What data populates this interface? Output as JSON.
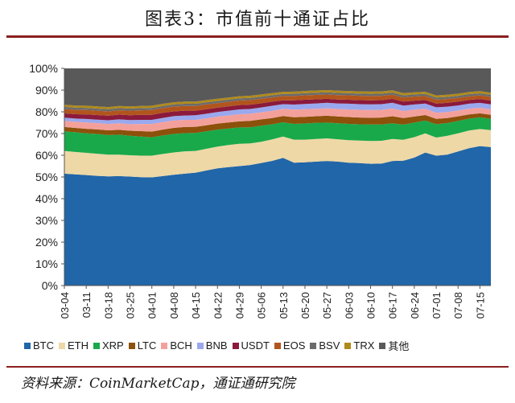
{
  "title": "图表3：市值前十通证占比",
  "source": "资料来源：CoinMarketCap，通证通研究院",
  "chart_data": {
    "type": "area",
    "stacked": true,
    "ylim": [
      0,
      100
    ],
    "y_ticks": [
      "0%",
      "10%",
      "20%",
      "30%",
      "40%",
      "50%",
      "60%",
      "70%",
      "80%",
      "90%",
      "100%"
    ],
    "x_ticks": [
      "03-04",
      "03-11",
      "03-18",
      "03-25",
      "04-01",
      "04-08",
      "04-15",
      "04-22",
      "04-29",
      "05-06",
      "05-13",
      "05-20",
      "05-27",
      "06-03",
      "06-10",
      "06-17",
      "06-24",
      "07-01",
      "07-08",
      "07-15"
    ],
    "x": [
      "03-04",
      "03-07",
      "03-11",
      "03-14",
      "03-18",
      "03-21",
      "03-25",
      "03-28",
      "04-01",
      "04-04",
      "04-08",
      "04-11",
      "04-15",
      "04-18",
      "04-22",
      "04-25",
      "04-29",
      "05-02",
      "05-06",
      "05-09",
      "05-13",
      "05-16",
      "05-20",
      "05-23",
      "05-27",
      "05-30",
      "06-03",
      "06-06",
      "06-10",
      "06-13",
      "06-17",
      "06-20",
      "06-24",
      "06-27",
      "07-01",
      "07-04",
      "07-08",
      "07-11",
      "07-15",
      "07-18"
    ],
    "series": [
      {
        "name": "BTC",
        "color": "#2166a8",
        "values": [
          51.5,
          51.2,
          50.9,
          50.5,
          50.3,
          50.4,
          50.2,
          49.9,
          49.8,
          50.4,
          51.0,
          51.5,
          52.0,
          53.0,
          54.0,
          54.5,
          55.0,
          55.5,
          56.5,
          58.0,
          60.0,
          56.0,
          56.2,
          56.5,
          56.8,
          56.5,
          56.0,
          55.8,
          55.5,
          55.6,
          56.8,
          57.5,
          59.5,
          62.5,
          61.0,
          61.5,
          63.0,
          64.5,
          65.5,
          65.0
        ]
      },
      {
        "name": "ETH",
        "color": "#eed8a6",
        "values": [
          10.5,
          10.3,
          10.2,
          10.2,
          10.0,
          9.9,
          9.8,
          9.9,
          10.0,
          10.2,
          10.3,
          10.3,
          10.0,
          10.0,
          10.0,
          10.2,
          10.3,
          10.0,
          9.8,
          10.0,
          10.0,
          10.5,
          10.3,
          10.3,
          10.3,
          10.2,
          10.3,
          10.3,
          10.4,
          10.4,
          10.0,
          9.6,
          9.5,
          9.0,
          8.5,
          8.8,
          8.5,
          8.3,
          8.0,
          8.0
        ]
      },
      {
        "name": "XRP",
        "color": "#19a94a",
        "values": [
          9.0,
          9.1,
          9.0,
          9.1,
          9.0,
          9.2,
          9.0,
          8.8,
          8.5,
          8.5,
          8.5,
          8.4,
          8.3,
          8.0,
          7.8,
          7.6,
          7.5,
          7.4,
          7.4,
          7.0,
          6.7,
          7.2,
          7.4,
          7.4,
          7.2,
          7.3,
          7.4,
          7.4,
          7.5,
          7.4,
          7.2,
          7.0,
          6.8,
          6.0,
          6.3,
          6.0,
          5.8,
          5.6,
          5.5,
          5.3
        ]
      },
      {
        "name": "LTC",
        "color": "#8c510a",
        "values": [
          2.0,
          2.0,
          2.1,
          2.1,
          2.2,
          2.2,
          2.3,
          2.5,
          2.6,
          2.7,
          2.8,
          2.8,
          2.8,
          2.8,
          2.8,
          2.8,
          2.8,
          2.9,
          2.9,
          2.9,
          2.9,
          3.0,
          3.0,
          3.0,
          3.1,
          3.1,
          3.1,
          3.1,
          3.1,
          3.2,
          3.2,
          3.0,
          2.8,
          2.6,
          2.5,
          2.4,
          2.2,
          2.0,
          1.9,
          1.9
        ]
      },
      {
        "name": "BCH",
        "color": "#f4a09a",
        "values": [
          2.8,
          2.8,
          2.9,
          2.9,
          2.9,
          3.0,
          3.0,
          3.3,
          3.5,
          3.5,
          3.4,
          3.3,
          3.2,
          3.2,
          3.2,
          3.2,
          3.3,
          3.3,
          3.3,
          3.4,
          3.4,
          3.5,
          3.5,
          3.4,
          3.4,
          3.4,
          3.5,
          3.5,
          3.5,
          3.5,
          3.5,
          3.3,
          3.2,
          3.0,
          2.9,
          2.8,
          2.7,
          2.7,
          2.6,
          2.6
        ]
      },
      {
        "name": "BNB",
        "color": "#9aa8ee",
        "values": [
          1.5,
          1.5,
          1.6,
          1.6,
          1.7,
          1.8,
          1.9,
          1.9,
          1.9,
          1.9,
          2.0,
          2.0,
          2.1,
          2.1,
          2.1,
          2.2,
          2.2,
          2.2,
          2.2,
          2.3,
          2.2,
          2.3,
          2.4,
          2.4,
          2.5,
          2.5,
          2.6,
          2.6,
          2.6,
          2.6,
          2.6,
          2.5,
          2.4,
          2.4,
          2.5,
          2.5,
          2.4,
          2.3,
          2.3,
          2.3
        ]
      },
      {
        "name": "USDT",
        "color": "#8b1a3c",
        "values": [
          2.0,
          2.0,
          2.1,
          2.1,
          2.1,
          2.2,
          2.2,
          2.3,
          2.3,
          2.3,
          2.2,
          2.2,
          2.1,
          2.1,
          2.0,
          2.0,
          2.0,
          2.0,
          1.9,
          1.9,
          1.8,
          1.9,
          1.9,
          1.9,
          1.8,
          1.8,
          1.8,
          1.8,
          1.8,
          1.8,
          1.8,
          1.8,
          1.8,
          1.7,
          1.8,
          1.8,
          1.8,
          1.8,
          1.8,
          1.8
        ]
      },
      {
        "name": "EOS",
        "color": "#b2551d",
        "values": [
          2.0,
          2.0,
          2.0,
          2.0,
          2.0,
          2.0,
          2.1,
          2.1,
          2.2,
          2.2,
          2.2,
          2.2,
          2.2,
          2.2,
          2.1,
          2.1,
          2.1,
          2.1,
          2.1,
          2.0,
          2.0,
          2.0,
          2.0,
          2.0,
          2.0,
          2.0,
          2.0,
          2.0,
          2.0,
          2.0,
          1.9,
          1.9,
          1.9,
          1.8,
          1.8,
          1.8,
          1.7,
          1.7,
          1.7,
          1.7
        ]
      },
      {
        "name": "BSV",
        "color": "#6b6b6b",
        "values": [
          1.0,
          1.0,
          1.0,
          1.0,
          1.0,
          1.0,
          1.0,
          1.0,
          1.0,
          1.0,
          1.0,
          1.0,
          1.0,
          1.0,
          1.0,
          1.0,
          1.0,
          1.0,
          1.0,
          1.0,
          1.0,
          1.0,
          1.0,
          1.0,
          1.0,
          1.0,
          1.0,
          1.0,
          1.0,
          1.0,
          1.0,
          1.0,
          1.0,
          1.0,
          1.0,
          1.0,
          1.0,
          1.0,
          1.0,
          1.0
        ]
      },
      {
        "name": "TRX",
        "color": "#b08a18",
        "values": [
          1.0,
          1.0,
          1.0,
          1.0,
          1.0,
          1.0,
          1.0,
          1.0,
          1.0,
          1.0,
          1.0,
          1.0,
          1.0,
          1.0,
          1.0,
          1.0,
          1.0,
          1.0,
          1.0,
          1.0,
          1.0,
          1.0,
          1.0,
          1.0,
          1.0,
          1.0,
          1.0,
          1.0,
          1.0,
          1.0,
          1.0,
          1.0,
          1.0,
          1.0,
          1.0,
          1.0,
          1.0,
          1.0,
          1.0,
          1.0
        ]
      },
      {
        "name": "其他",
        "color": "#595959",
        "values": [
          16.7,
          17.1,
          17.2,
          17.5,
          17.8,
          17.3,
          17.5,
          17.3,
          17.2,
          16.3,
          15.6,
          15.3,
          15.3,
          14.6,
          14.0,
          13.4,
          12.8,
          12.6,
          12.0,
          11.5,
          11.0,
          10.6,
          10.3,
          10.1,
          9.9,
          10.2,
          10.3,
          10.5,
          10.6,
          10.5,
          10.0,
          11.4,
          11.1,
          11.0,
          12.7,
          12.4,
          11.9,
          11.1,
          10.7,
          11.4
        ]
      }
    ]
  }
}
